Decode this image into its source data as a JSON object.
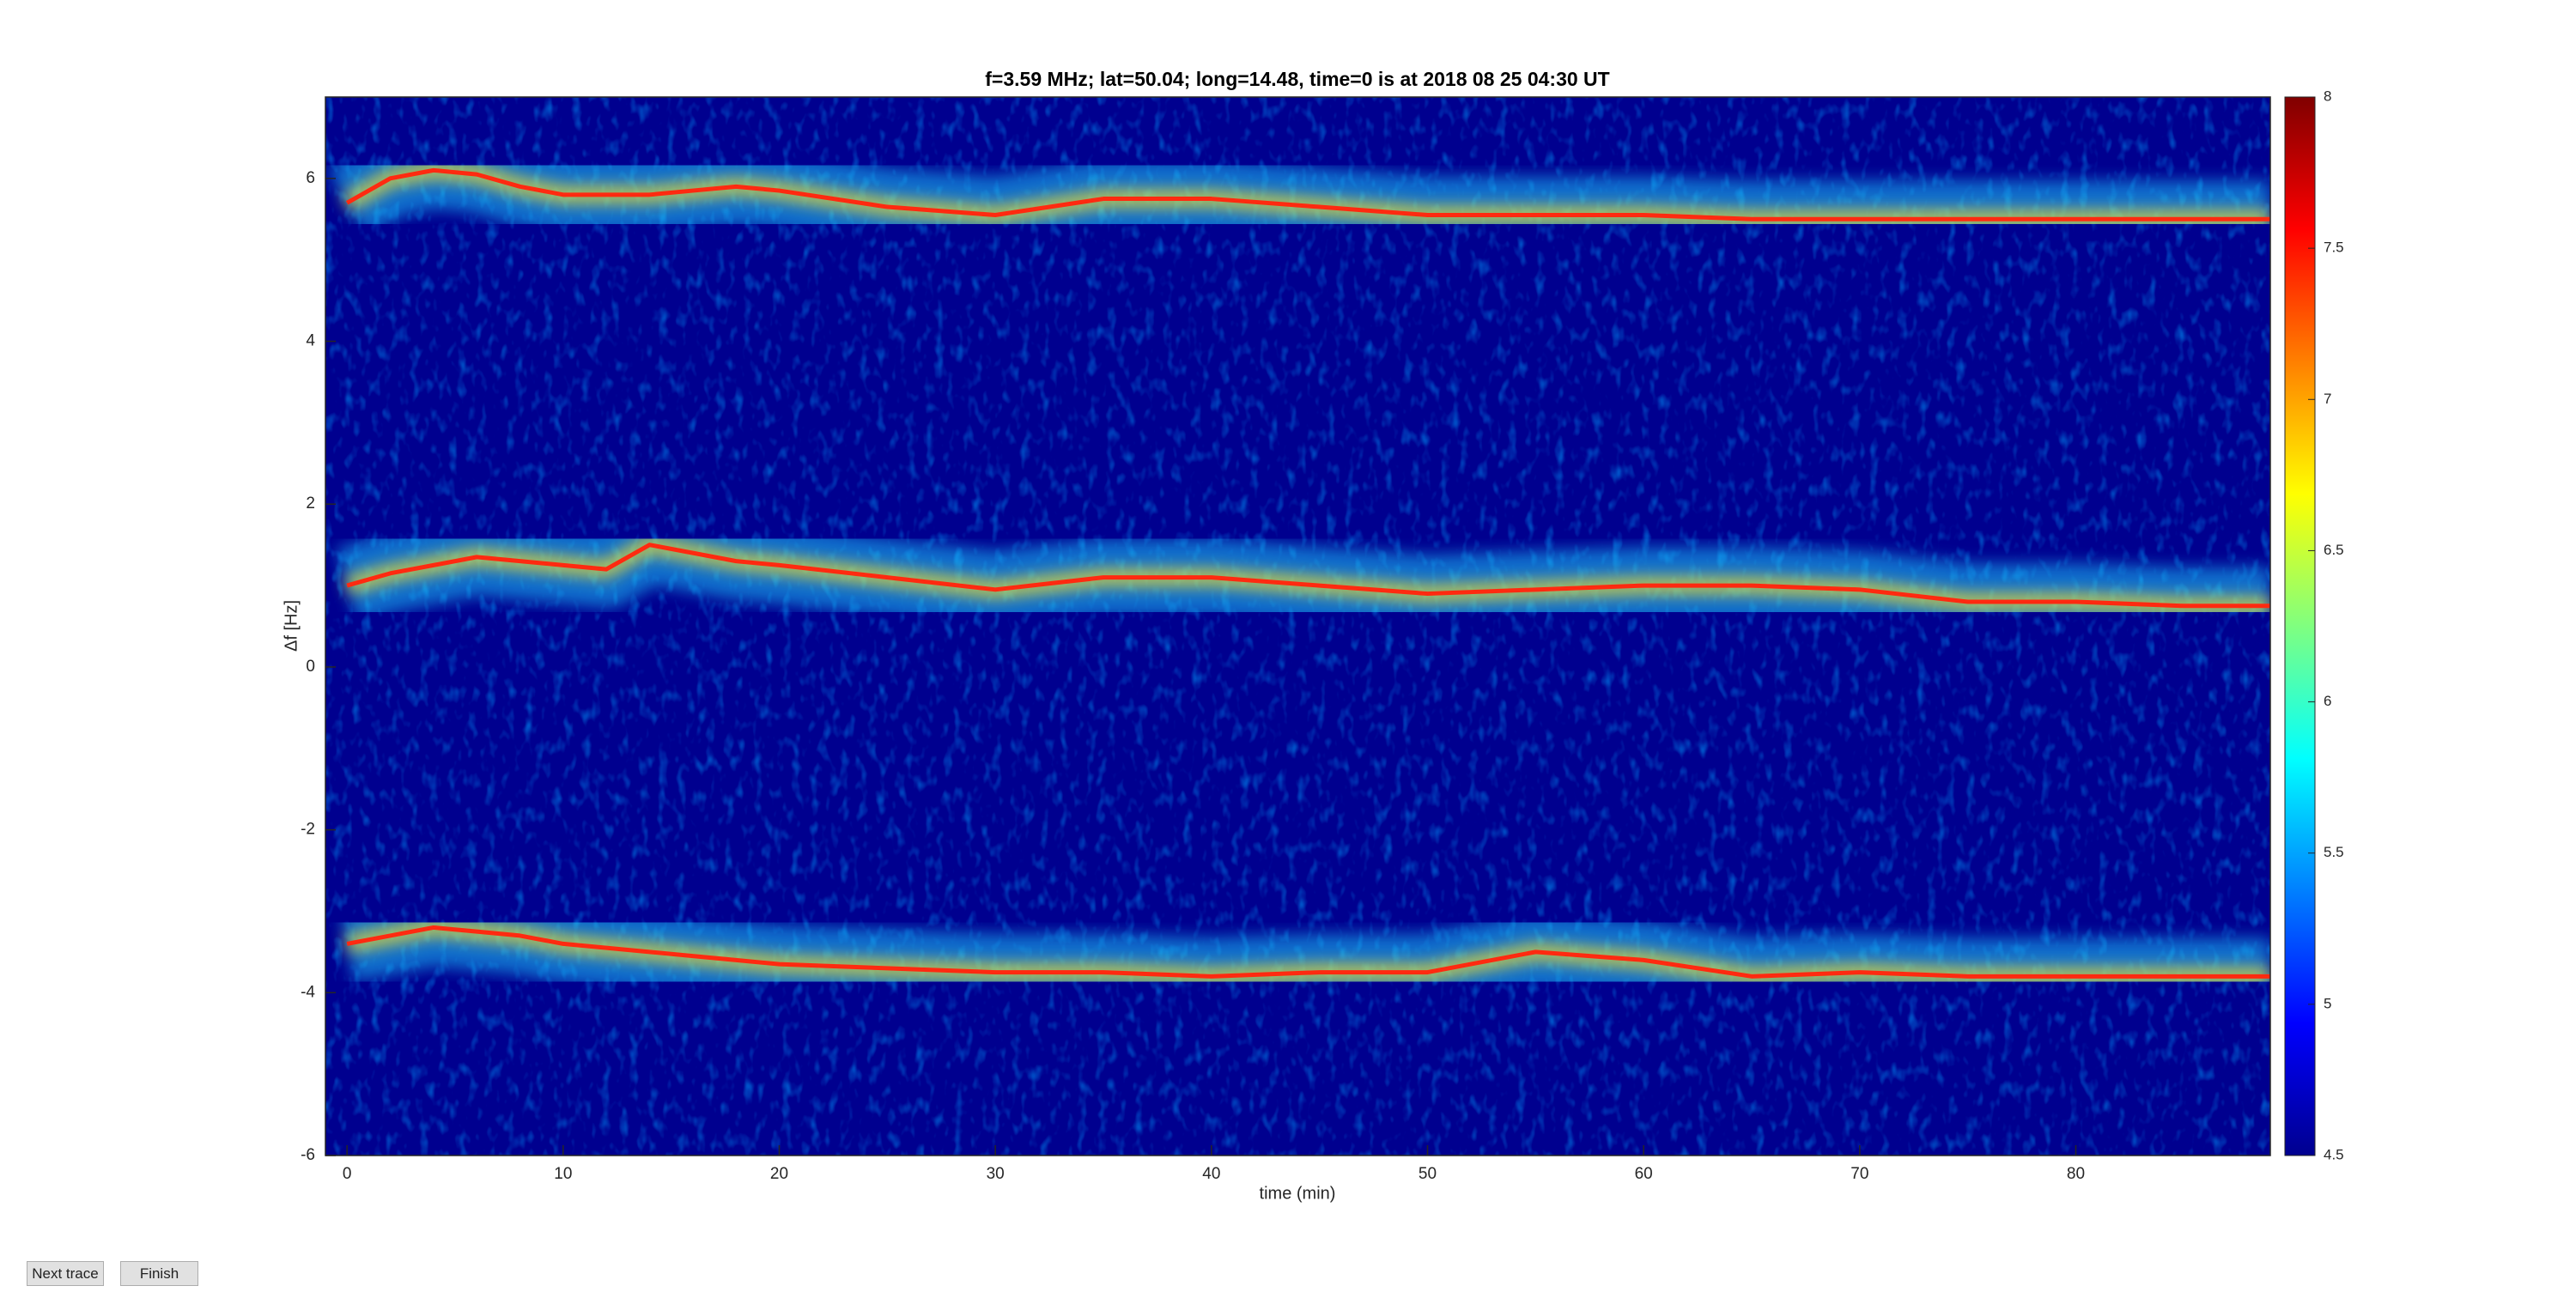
{
  "chart_data": {
    "type": "spectrogram",
    "title": "f=3.59 MHz;  lat=50.04; long=14.48, time=0 is at 2018 08 25 04:30 UT",
    "x_label": "time (min)",
    "y_label": "Δf [Hz]",
    "x": [
      0,
      2,
      4,
      6,
      8,
      10,
      12,
      14,
      16,
      18,
      20,
      25,
      30,
      35,
      40,
      45,
      50,
      55,
      60,
      65,
      70,
      75,
      80,
      85,
      89
    ],
    "series": [
      {
        "color": "#ff2a10",
        "values": [
          5.7,
          6.0,
          6.1,
          6.05,
          5.9,
          5.8,
          5.8,
          5.8,
          5.85,
          5.9,
          5.85,
          5.65,
          5.55,
          5.75,
          5.75,
          5.65,
          5.55,
          5.55,
          5.55,
          5.5,
          5.5,
          5.5,
          5.5,
          5.5,
          5.5
        ]
      },
      {
        "color": "#ff2a10",
        "values": [
          1.0,
          1.15,
          1.25,
          1.35,
          1.3,
          1.25,
          1.2,
          1.5,
          1.4,
          1.3,
          1.25,
          1.1,
          0.95,
          1.1,
          1.1,
          1.0,
          0.9,
          0.95,
          1.0,
          1.0,
          0.95,
          0.8,
          0.8,
          0.75,
          0.75
        ]
      },
      {
        "color": "#ff2a10",
        "values": [
          -3.4,
          -3.3,
          -3.2,
          -3.25,
          -3.3,
          -3.4,
          -3.45,
          -3.5,
          -3.55,
          -3.6,
          -3.65,
          -3.7,
          -3.75,
          -3.75,
          -3.8,
          -3.75,
          -3.75,
          -3.5,
          -3.6,
          -3.8,
          -3.75,
          -3.8,
          -3.8,
          -3.8,
          -3.8
        ]
      }
    ],
    "xlim": [
      -1,
      89
    ],
    "xticks": [
      0,
      10,
      20,
      30,
      40,
      50,
      60,
      70,
      80
    ],
    "ylim": [
      -6,
      7
    ],
    "yticks": [
      -6,
      -4,
      -2,
      0,
      2,
      4,
      6
    ],
    "clim": [
      4.5,
      8
    ],
    "cticks": [
      4.5,
      5,
      5.5,
      6,
      6.5,
      7,
      7.5,
      8
    ]
  },
  "buttons": [
    "Next trace",
    "Finish"
  ]
}
